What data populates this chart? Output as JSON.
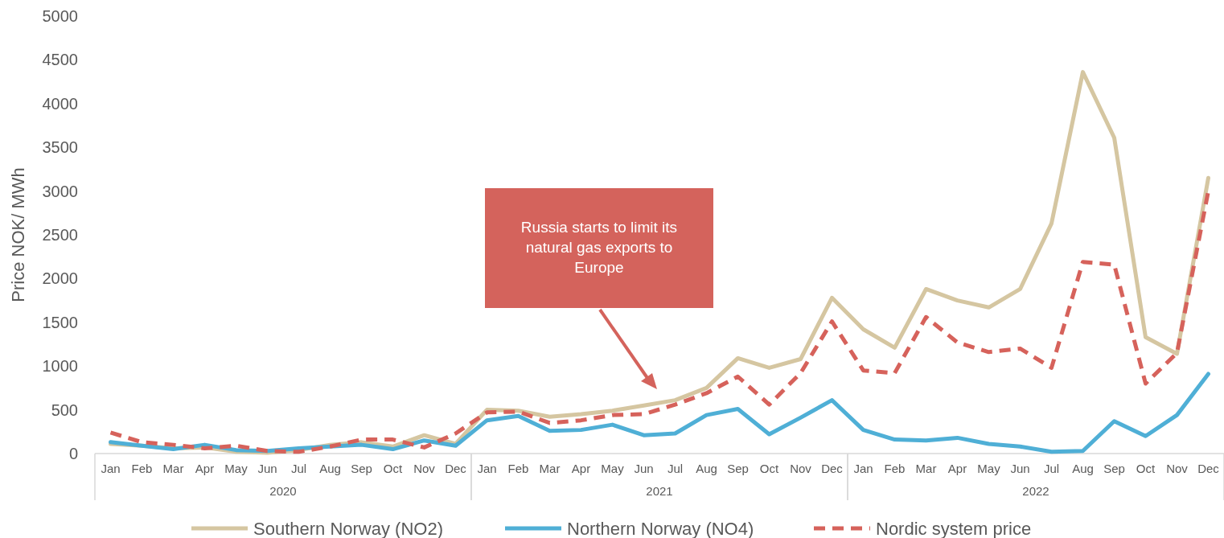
{
  "chart_data": {
    "type": "line",
    "ylabel": "Price NOK/ MWh",
    "categories": [
      "Jan",
      "Feb",
      "Mar",
      "Apr",
      "May",
      "Jun",
      "Jul",
      "Aug",
      "Sep",
      "Oct",
      "Nov",
      "Dec",
      "Jan",
      "Feb",
      "Mar",
      "Apr",
      "May",
      "Jun",
      "Jul",
      "Aug",
      "Sep",
      "Oct",
      "Nov",
      "Dec",
      "Jan",
      "Feb",
      "Mar",
      "Apr",
      "May",
      "Jun",
      "Jul",
      "Aug",
      "Sep",
      "Oct",
      "Nov",
      "Dec"
    ],
    "ylim": [
      0,
      5000
    ],
    "yticks": [
      0,
      500,
      1000,
      1500,
      2000,
      2500,
      3000,
      3500,
      4000,
      4500,
      5000
    ],
    "grid": false,
    "legend": "bottom",
    "series": [
      {
        "name": "Southern Norway (NO2)",
        "color": "#d5c6a1",
        "line_style": "solid",
        "values": [
          110,
          90,
          60,
          70,
          20,
          10,
          40,
          100,
          130,
          80,
          210,
          110,
          500,
          490,
          420,
          450,
          490,
          550,
          610,
          750,
          1090,
          980,
          1080,
          1780,
          1420,
          1210,
          1880,
          1750,
          1670,
          1880,
          2630,
          4360,
          3610,
          1330,
          1140,
          3150
        ]
      },
      {
        "name": "Northern Norway (NO4)",
        "color": "#4fafd6",
        "line_style": "solid",
        "values": [
          130,
          90,
          50,
          100,
          40,
          30,
          60,
          80,
          100,
          50,
          150,
          90,
          380,
          430,
          260,
          270,
          330,
          210,
          230,
          440,
          510,
          220,
          410,
          610,
          270,
          160,
          150,
          180,
          110,
          80,
          20,
          30,
          370,
          200,
          440,
          910
        ]
      },
      {
        "name": "Nordic system price",
        "color": "#d6625b",
        "line_style": "dashed",
        "values": [
          240,
          130,
          100,
          60,
          90,
          30,
          20,
          80,
          160,
          160,
          70,
          230,
          470,
          480,
          350,
          380,
          440,
          450,
          560,
          690,
          880,
          560,
          920,
          1510,
          950,
          920,
          1560,
          1270,
          1160,
          1200,
          980,
          2190,
          2160,
          800,
          1150,
          3000
        ]
      }
    ],
    "annotations": [
      "2020",
      "2021",
      "2022",
      "Russia starts to limit its natural gas exports to Europe"
    ]
  }
}
